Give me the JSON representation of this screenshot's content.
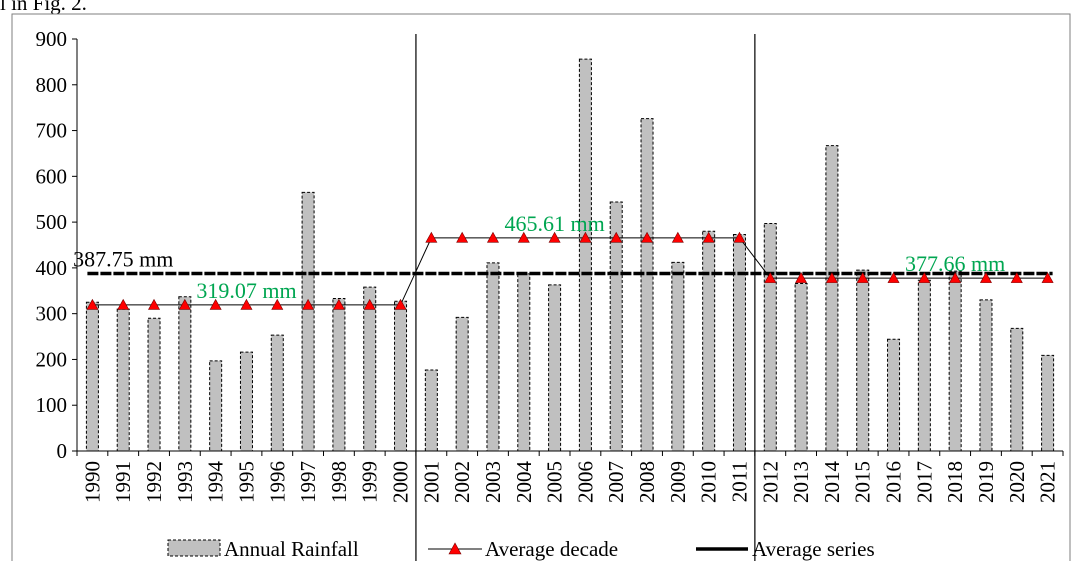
{
  "caption_fragment": "l in Fig. 2.",
  "chart_data": {
    "type": "bar",
    "categories": [
      "1990",
      "1991",
      "1992",
      "1993",
      "1994",
      "1995",
      "1996",
      "1997",
      "1998",
      "1999",
      "2000",
      "2001",
      "2002",
      "2003",
      "2004",
      "2005",
      "2006",
      "2007",
      "2008",
      "2009",
      "2010",
      "2011",
      "2012",
      "2013",
      "2014",
      "2015",
      "2016",
      "2017",
      "2018",
      "2019",
      "2020",
      "2021"
    ],
    "ylim": [
      0,
      900
    ],
    "yticks": [
      0,
      100,
      200,
      300,
      400,
      500,
      600,
      700,
      800,
      900
    ],
    "series": [
      {
        "name": "Annual Rainfall",
        "kind": "bar",
        "values": [
          325,
          310,
          290,
          337,
          197,
          216,
          253,
          565,
          333,
          358,
          327,
          177,
          292,
          411,
          387,
          363,
          856,
          544,
          726,
          412,
          480,
          473,
          497,
          366,
          667,
          395,
          244,
          373,
          393,
          330,
          268,
          209
        ]
      },
      {
        "name": "Average decade",
        "kind": "line-marker",
        "values": [
          319.07,
          319.07,
          319.07,
          319.07,
          319.07,
          319.07,
          319.07,
          319.07,
          319.07,
          319.07,
          319.07,
          465.61,
          465.61,
          465.61,
          465.61,
          465.61,
          465.61,
          465.61,
          465.61,
          465.61,
          465.61,
          465.61,
          377.66,
          377.66,
          377.66,
          377.66,
          377.66,
          377.66,
          377.66,
          377.66,
          377.66,
          377.66
        ]
      },
      {
        "name": "Average series",
        "kind": "line",
        "values": [
          387.75,
          387.75,
          387.75,
          387.75,
          387.75,
          387.75,
          387.75,
          387.75,
          387.75,
          387.75,
          387.75,
          387.75,
          387.75,
          387.75,
          387.75,
          387.75,
          387.75,
          387.75,
          387.75,
          387.75,
          387.75,
          387.75,
          387.75,
          387.75,
          387.75,
          387.75,
          387.75,
          387.75,
          387.75,
          387.75,
          387.75,
          387.75
        ]
      }
    ],
    "annotations": [
      {
        "text": "387.75 mm",
        "x": "1991",
        "y": 387.75,
        "color": "#000000"
      },
      {
        "text": "319.07 mm",
        "x": "1995",
        "y": 319.07,
        "color": "#00a651"
      },
      {
        "text": "465.61 mm",
        "x": "2005",
        "y": 465.61,
        "color": "#00a651"
      },
      {
        "text": "377.66 mm",
        "x": "2018",
        "y": 377.66,
        "color": "#00a651"
      }
    ],
    "separators_after": [
      "2000",
      "2011"
    ],
    "colors": {
      "bar_fill": "#c0c0c0",
      "marker": "#ff0000",
      "annotation_green": "#00a651"
    },
    "legend": {
      "position": "bottom",
      "items": [
        "Annual Rainfall",
        "Average decade",
        "Average series"
      ]
    },
    "grid": false
  }
}
